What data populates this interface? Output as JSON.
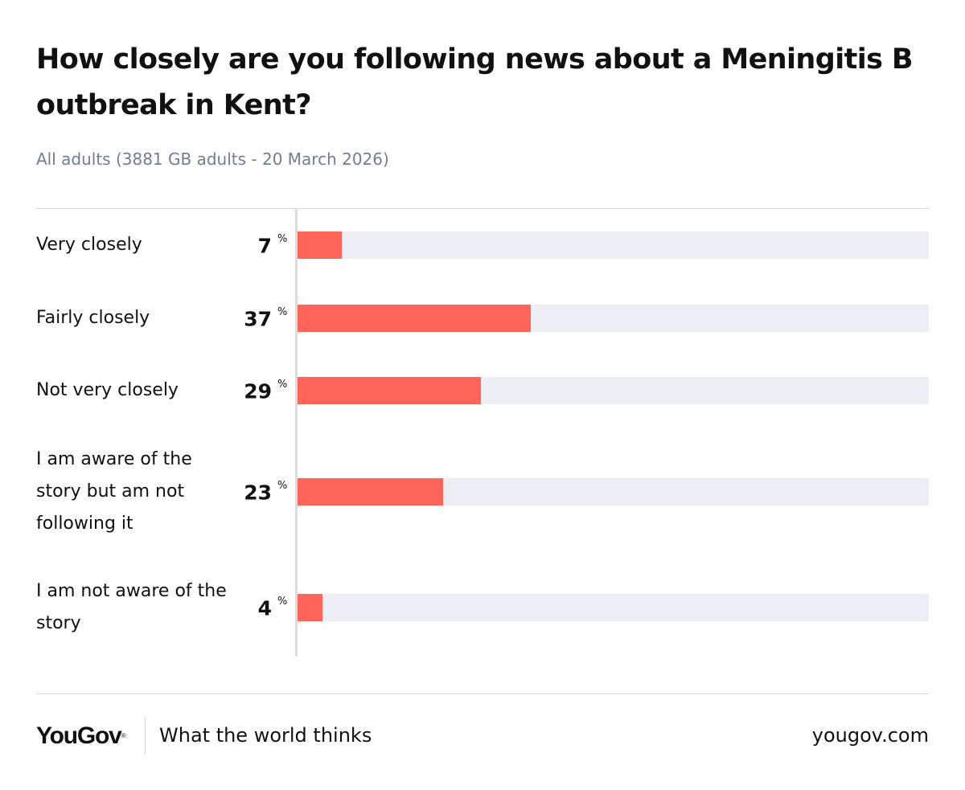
{
  "chart_data": {
    "type": "bar",
    "title": "How closely are you following news about a Meningitis B outbreak in Kent?",
    "subtitle": "All adults (3881 GB adults - 20 March 2026)",
    "categories": [
      "Very closely",
      "Fairly closely",
      "Not very closely",
      "I am aware of the story but am not following it",
      "I am not aware of the story"
    ],
    "values": [
      7,
      37,
      29,
      23,
      4
    ],
    "value_suffix": "%",
    "xlim": [
      0,
      100
    ],
    "orientation": "horizontal",
    "grid": false,
    "legend": "none",
    "colors": {
      "bar": "#ff6659",
      "track": "#edeef3",
      "axis": "#dadce1",
      "subtitle": "#6f7e95"
    }
  },
  "footer": {
    "brand": "YouGov",
    "brand_mark": "®",
    "tagline": "What the world thinks",
    "site": "yougov.com"
  }
}
